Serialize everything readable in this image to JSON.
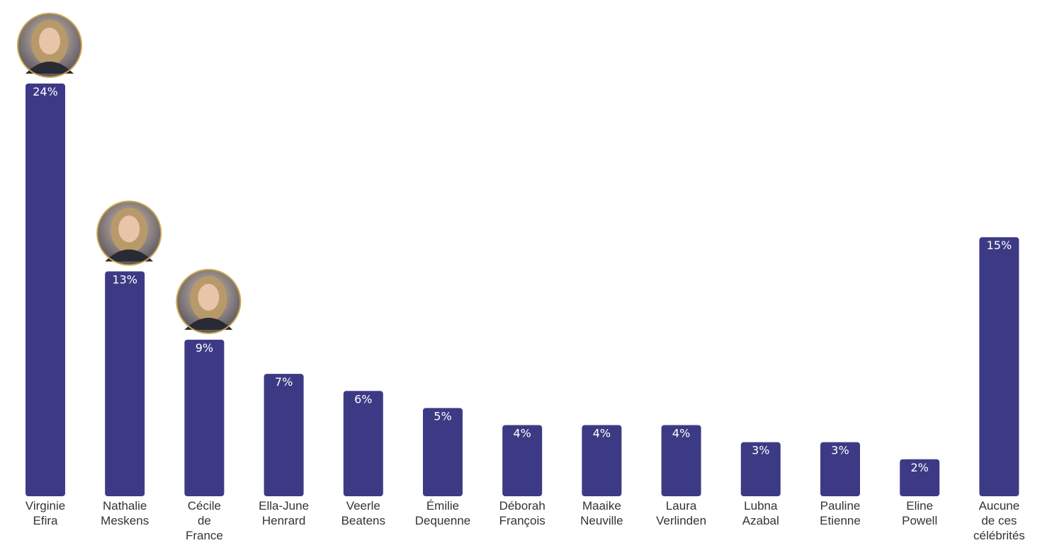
{
  "chart_data": {
    "type": "bar",
    "categories": [
      [
        "Virginie",
        "Efira"
      ],
      [
        "Nathalie",
        "Meskens"
      ],
      [
        "Cécile",
        "de",
        "France"
      ],
      [
        "Ella-June",
        "Henrard"
      ],
      [
        "Veerle",
        "Beatens"
      ],
      [
        "Émilie",
        "Dequenne"
      ],
      [
        "Déborah",
        "François"
      ],
      [
        "Maaike",
        "Neuville"
      ],
      [
        "Laura",
        "Verlinden"
      ],
      [
        "Lubna",
        "Azabal"
      ],
      [
        "Pauline",
        "Etienne"
      ],
      [
        "Eline",
        "Powell"
      ],
      [
        "Aucune",
        "de ces",
        "célébrités"
      ]
    ],
    "values": [
      24,
      13,
      9,
      7,
      6,
      5,
      4,
      4,
      4,
      3,
      3,
      2,
      15
    ],
    "value_labels": [
      "24%",
      "13%",
      "9%",
      "7%",
      "6%",
      "5%",
      "4%",
      "4%",
      "4%",
      "3%",
      "3%",
      "2%",
      "15%"
    ],
    "title": "",
    "xlabel": "",
    "ylabel": "",
    "ylim": [
      0,
      24
    ],
    "grid": false,
    "legend": "none",
    "portraits": [
      {
        "category_index": 0,
        "icon": "portrait-photo"
      },
      {
        "category_index": 1,
        "icon": "portrait-photo"
      },
      {
        "category_index": 2,
        "icon": "portrait-photo"
      }
    ],
    "colors": {
      "bar": "#3d3a85",
      "bar_label": "#ffffff",
      "category_label": "#333333",
      "portrait_ring": "#c9a64a"
    }
  }
}
